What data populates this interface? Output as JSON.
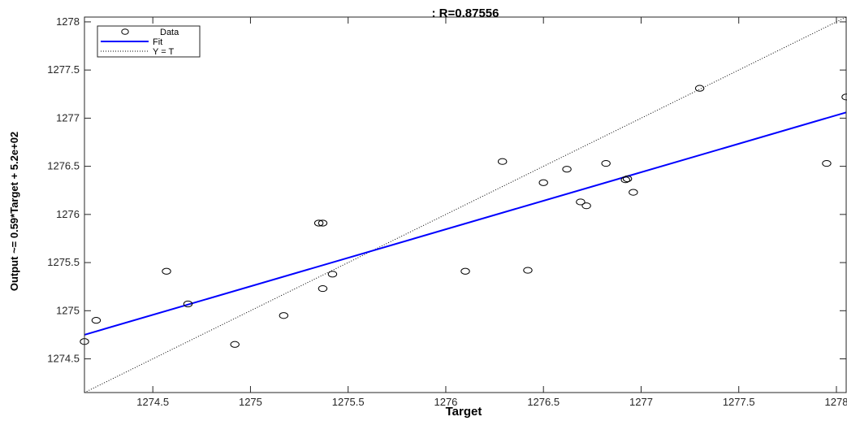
{
  "chart_data": {
    "type": "scatter",
    "title": ": R=0.87556",
    "xlabel": "Target",
    "ylabel": "Output ~= 0.59*Target + 5.2e+02",
    "xlim": [
      1274.15,
      1278.05
    ],
    "ylim": [
      1274.15,
      1278.05
    ],
    "xticks": [
      1274.5,
      1275,
      1275.5,
      1276,
      1276.5,
      1277,
      1277.5,
      1278
    ],
    "yticks": [
      1274.5,
      1275,
      1275.5,
      1276,
      1276.5,
      1277,
      1277.5,
      1278
    ],
    "xtick_labels": [
      "1274.5",
      "1275",
      "1275.5",
      "1276",
      "1276.5",
      "1277",
      "1277.5",
      "1278"
    ],
    "ytick_labels": [
      "1274.5",
      "1275",
      "1275.5",
      "1276",
      "1276.5",
      "1277",
      "1277.5",
      "1278"
    ],
    "grid": false,
    "legend_position": "top-left",
    "series": [
      {
        "name": "Data",
        "style": "marker-circle",
        "color": "#000000",
        "points": [
          [
            1274.15,
            1274.68
          ],
          [
            1274.21,
            1274.9
          ],
          [
            1274.57,
            1275.41
          ],
          [
            1274.68,
            1275.07
          ],
          [
            1274.92,
            1274.65
          ],
          [
            1275.17,
            1274.95
          ],
          [
            1275.35,
            1275.91
          ],
          [
            1275.37,
            1275.91
          ],
          [
            1275.37,
            1275.23
          ],
          [
            1275.42,
            1275.38
          ],
          [
            1276.1,
            1275.41
          ],
          [
            1276.29,
            1276.55
          ],
          [
            1276.42,
            1275.42
          ],
          [
            1276.5,
            1276.33
          ],
          [
            1276.62,
            1276.47
          ],
          [
            1276.69,
            1276.13
          ],
          [
            1276.72,
            1276.09
          ],
          [
            1276.82,
            1276.53
          ],
          [
            1276.92,
            1276.36
          ],
          [
            1276.93,
            1276.37
          ],
          [
            1276.96,
            1276.23
          ],
          [
            1277.3,
            1277.31
          ],
          [
            1277.95,
            1276.53
          ],
          [
            1278.05,
            1277.22
          ]
        ]
      },
      {
        "name": "Fit",
        "style": "line-solid",
        "color": "#0000ff",
        "points": [
          [
            1274.15,
            1274.75
          ],
          [
            1278.05,
            1277.06
          ]
        ]
      },
      {
        "name": "Y = T",
        "style": "line-dotted",
        "color": "#000000",
        "points": [
          [
            1274.15,
            1274.15
          ],
          [
            1278.05,
            1278.05
          ]
        ]
      }
    ]
  }
}
